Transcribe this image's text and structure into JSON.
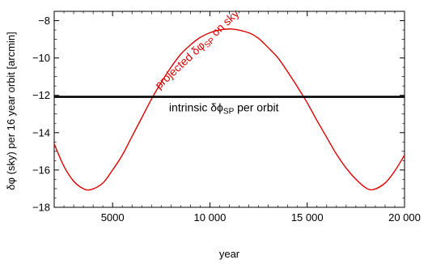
{
  "chart_data": {
    "type": "line",
    "title": "",
    "xlabel": "year",
    "ylabel": "δφ (sky) per 16 year orbit [arcmin]",
    "xlim": [
      2000,
      20000
    ],
    "ylim": [
      -18,
      -7.5
    ],
    "x_ticks": [
      5000,
      10000,
      15000,
      20000
    ],
    "x_tick_labels": [
      "5000",
      "10 000",
      "15 000",
      "20 000"
    ],
    "y_ticks": [
      -18,
      -16,
      -14,
      -12,
      -10,
      -8
    ],
    "y_tick_labels": [
      "−18",
      "−16",
      "−14",
      "−12",
      "−10",
      "−8"
    ],
    "grid": false,
    "series": [
      {
        "name": "projected δφSP on sky",
        "color": "#dd0000",
        "x": [
          2000,
          2500,
          3000,
          3500,
          3900,
          4500,
          5000,
          5500,
          6000,
          6500,
          7000,
          7500,
          8000,
          8500,
          9000,
          9500,
          10000,
          10500,
          11150,
          12000,
          12500,
          13000,
          13500,
          14000,
          14500,
          15000,
          15500,
          16000,
          16500,
          17000,
          17500,
          18000,
          18400,
          19000,
          19500,
          20000
        ],
        "y": [
          -14.6,
          -15.8,
          -16.6,
          -17.0,
          -17.05,
          -16.7,
          -16.0,
          -15.2,
          -14.2,
          -13.2,
          -12.2,
          -11.3,
          -10.5,
          -9.8,
          -9.3,
          -8.9,
          -8.65,
          -8.5,
          -8.45,
          -8.65,
          -8.95,
          -9.45,
          -10.0,
          -10.75,
          -11.55,
          -12.4,
          -13.35,
          -14.25,
          -15.15,
          -15.9,
          -16.5,
          -16.95,
          -17.05,
          -16.7,
          -16.05,
          -15.2
        ]
      },
      {
        "name": "intrinsic δϕSP per orbit",
        "color": "#000000",
        "x": [
          2000,
          20000
        ],
        "y": [
          -12.08,
          -12.08
        ]
      }
    ],
    "annotations": [
      {
        "text_main": "projected δφ",
        "text_sub": "SP",
        "text_after": " on sky",
        "color": "#dd0000",
        "x": 7400,
        "y": -11.7,
        "rotate": -43
      },
      {
        "text_main": "intrinsic δϕ",
        "text_sub": "SP",
        "text_after": " per orbit",
        "color": "#000000",
        "x": 7900,
        "y": -12.85,
        "rotate": 0
      }
    ]
  }
}
